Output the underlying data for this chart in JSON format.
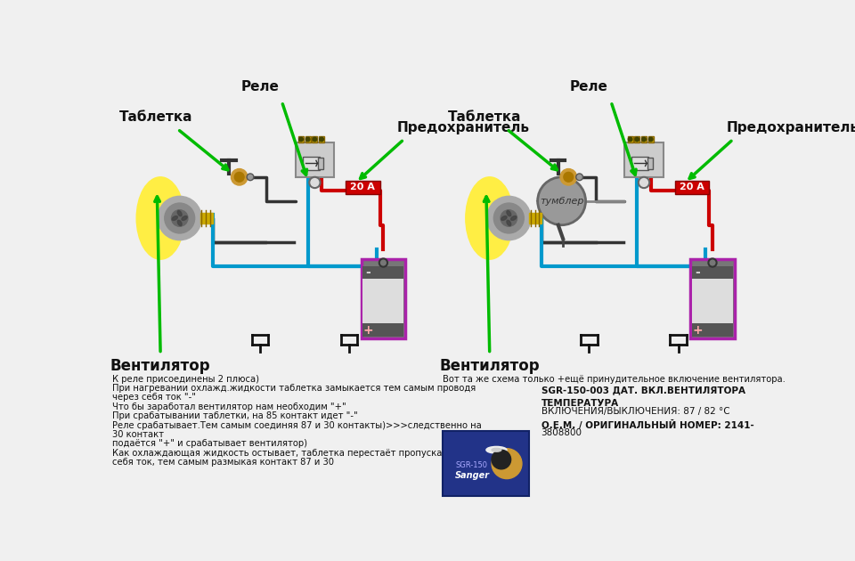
{
  "bg_color": "#f0f0f0",
  "arrow_color": "#00bb00",
  "wire_red": "#cc0000",
  "wire_blue": "#0099cc",
  "wire_black": "#111111",
  "wire_gray": "#888888",
  "fan_yellow": "#ffee44",
  "fan_blade_dark": "#ddcc22",
  "fan_hub": "#888888",
  "fan_body_gray": "#aaaaaa",
  "relay_gray": "#cccccc",
  "relay_border": "#888888",
  "relay_yellow": "#ddcc44",
  "fuse_red": "#cc0000",
  "battery_border": "#aa22aa",
  "battery_gray_dark": "#666666",
  "battery_gray_light": "#dddddd",
  "battery_white": "#eeeeee",
  "tumbler_gray": "#999999",
  "tumbler_border": "#666666",
  "sensor_box_blue": "#223388",
  "bottom_left_text": [
    "К реле присоединены 2 плюса)",
    "При нагревании охлажд.жидкости таблетка замыкается тем самым проводя",
    "через себя ток \"-\"",
    "Что бы заработал вентилятор нам необходим \"+\"",
    "При срабатывании таблетки, на 85 контакт идет \"-\"",
    "Реле срабатывает.Тем самым соединяя 87 и 30 контакты)>>>следственно на",
    "30 контакт",
    "подаётся \"+\" и срабатывает вентилятор)",
    "Как охлаждающая жидкость остывает, таблетка перестаёт пропускать через",
    "себя ток, тем самым размыкая контакт 87 и 30"
  ],
  "label_rele": "Реле",
  "label_tabletka": "Таблетка",
  "label_predohranitel": "Предохранитель",
  "label_ventilator": "Вентилятор",
  "label_tumbler": "тумблер",
  "label_fuse": "20 А",
  "right_line1": "Вот та же схема только +ещё принудительное включение вентилятора.",
  "right_line2": "SGR-150-003 ДАТ. ВКЛ.ВЕНТИЛЯТОРА",
  "right_line3": "ТЕМПЕРАТУРА",
  "right_line4": "ВКЛЮЧЕНИЯ/ВЫКЛЮЧЕНИЯ: 87 / 82 °С",
  "right_line5": "О.Е.М. / ОРИГИНАЛЬНЫЙ НОМЕР: 2141-",
  "right_line6": "3808800"
}
